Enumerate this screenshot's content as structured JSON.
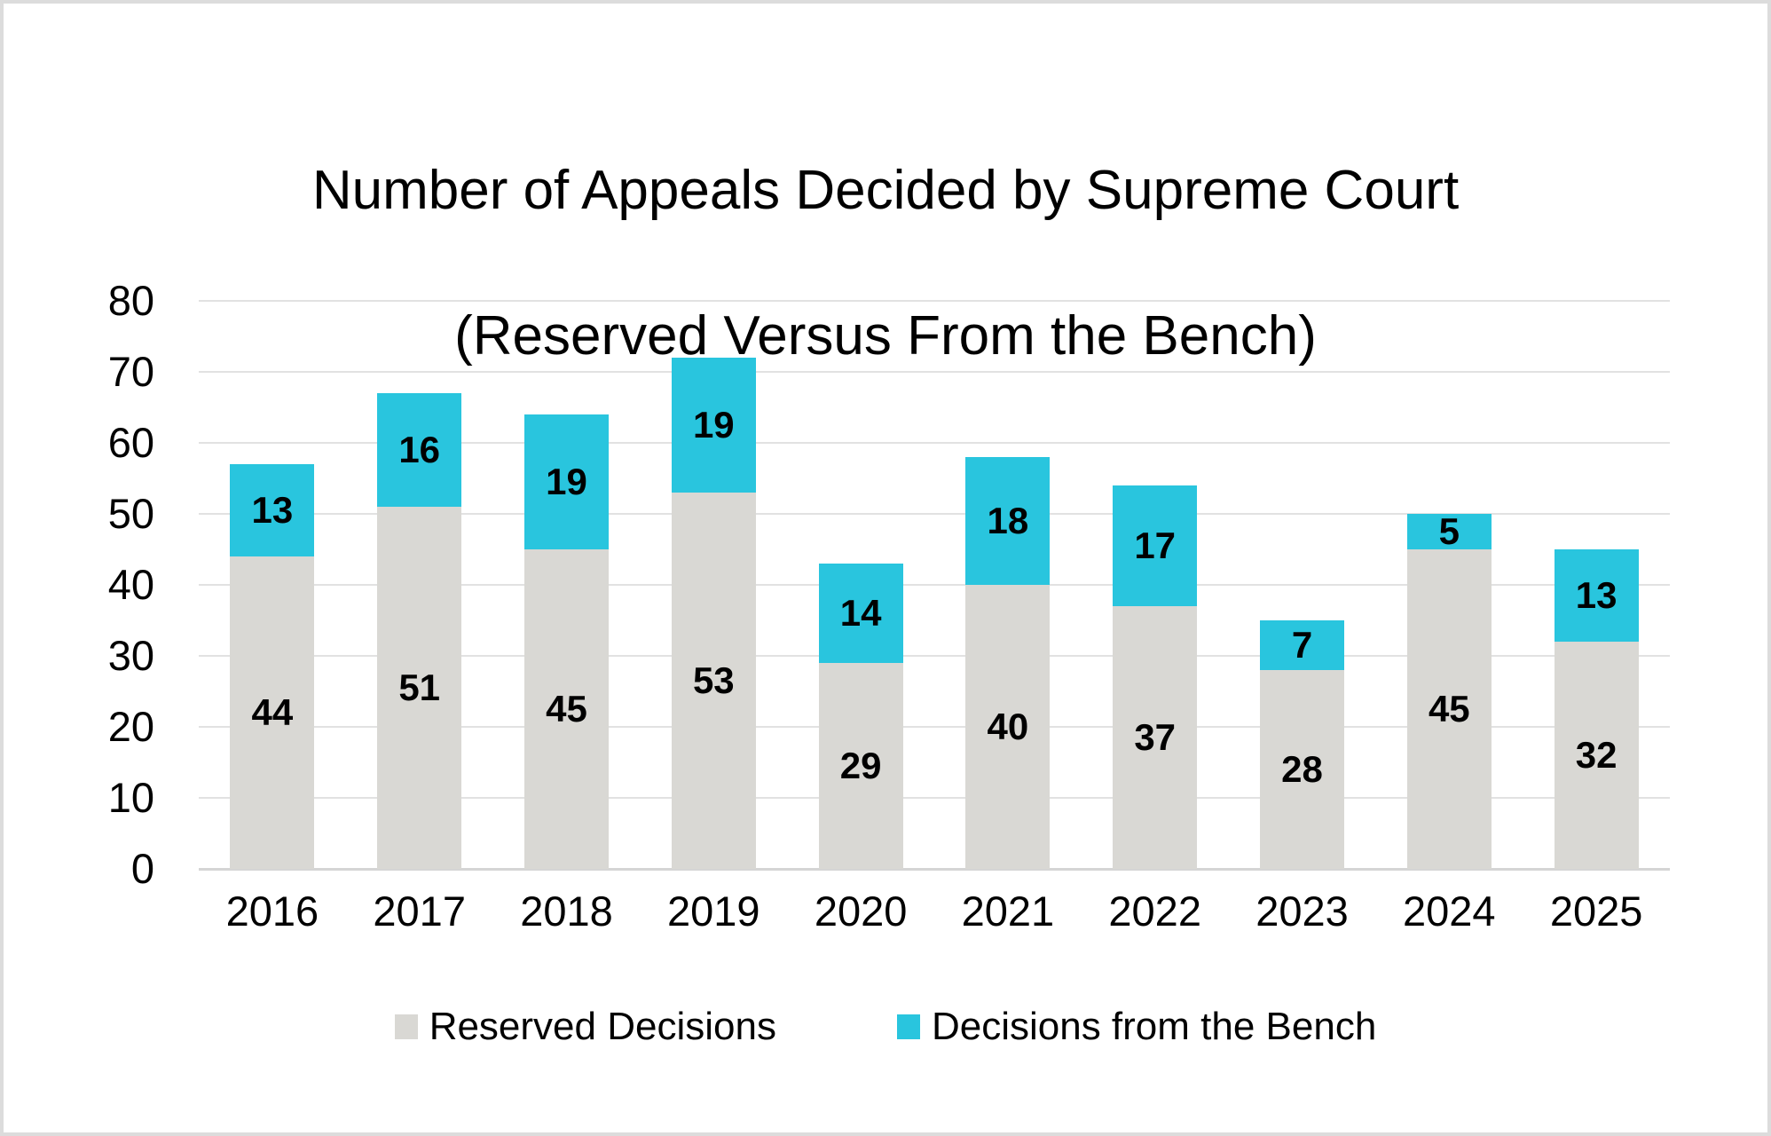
{
  "title": {
    "line1": "Number of Appeals Decided by Supreme Court",
    "line2": "(Reserved Versus From the Bench)"
  },
  "colors": {
    "reserved_gray": "#d9d8d4",
    "bench_cyan": "#29c5de",
    "gridline": "#e2e2e2",
    "axis_line": "#d5d5d5",
    "frame_border": "#dcdcdc",
    "label_text": "#000000"
  },
  "chart_data": {
    "type": "bar",
    "stacked": true,
    "title": "Number of Appeals Decided by Supreme Court (Reserved Versus From the Bench)",
    "categories": [
      "2016",
      "2017",
      "2018",
      "2019",
      "2020",
      "2021",
      "2022",
      "2023",
      "2024",
      "2025"
    ],
    "series": [
      {
        "name": "Reserved Decisions",
        "color": "#d9d8d4",
        "values": [
          44,
          51,
          45,
          53,
          29,
          40,
          37,
          28,
          45,
          32
        ]
      },
      {
        "name": "Decisions from the Bench",
        "color": "#29c5de",
        "values": [
          13,
          16,
          19,
          19,
          14,
          18,
          17,
          7,
          5,
          13
        ]
      }
    ],
    "totals": [
      57,
      67,
      64,
      72,
      43,
      58,
      54,
      35,
      50,
      45
    ],
    "xlabel": "",
    "ylabel": "",
    "ylim": [
      0,
      80
    ],
    "yticks": [
      0,
      10,
      20,
      30,
      40,
      50,
      60,
      70,
      80
    ],
    "grid": "horizontal",
    "data_labels": "inside-center",
    "legend_position": "bottom"
  }
}
